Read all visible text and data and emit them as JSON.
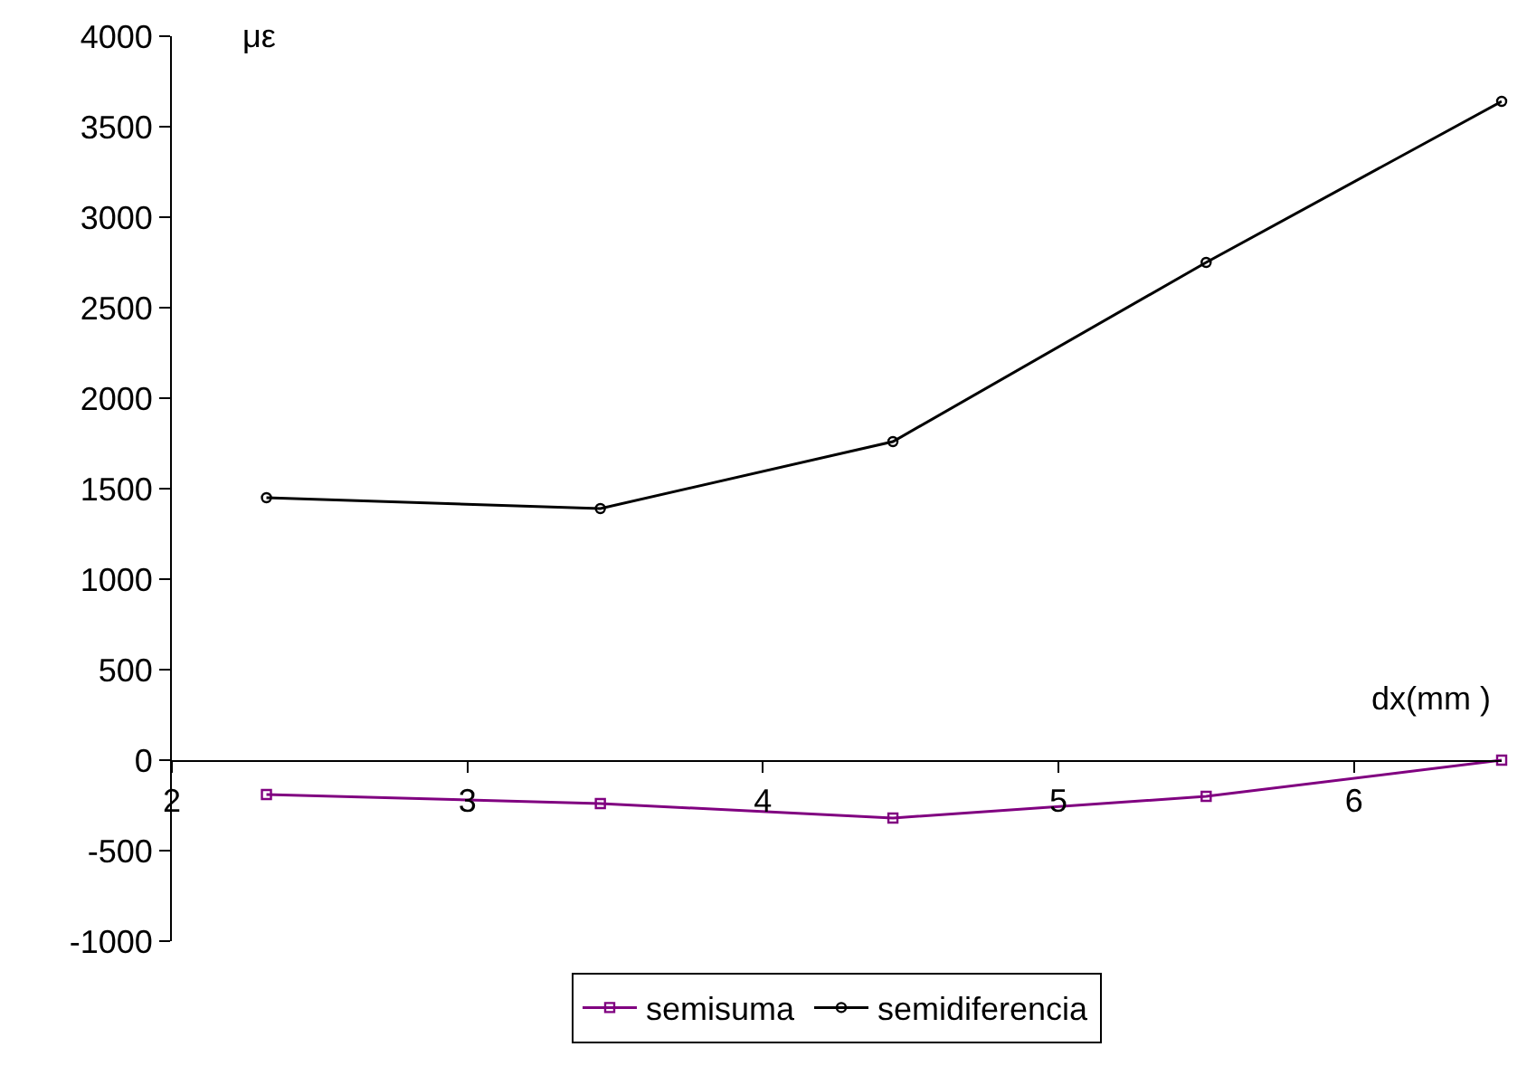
{
  "chart_data": {
    "type": "line",
    "xlabel": "dx(mm )",
    "ylabel": "με",
    "xlim": [
      2,
      6.5
    ],
    "xticks": [
      2,
      3,
      4,
      5,
      6
    ],
    "ylim": [
      -1000,
      4000
    ],
    "yticks": [
      -1000,
      -500,
      0,
      500,
      1000,
      1500,
      2000,
      2500,
      3000,
      3500,
      4000
    ],
    "grid": false,
    "legend": "bottom",
    "x": [
      2.32,
      3.45,
      4.44,
      5.5,
      6.5
    ],
    "series": [
      {
        "name": "semisuma",
        "color": "#800080",
        "marker": "square",
        "values": [
          -190,
          -240,
          -320,
          -200,
          0
        ]
      },
      {
        "name": "semidiferencia",
        "color": "#000000",
        "marker": "circle",
        "values": [
          1450,
          1390,
          1760,
          2750,
          3640
        ]
      }
    ]
  }
}
